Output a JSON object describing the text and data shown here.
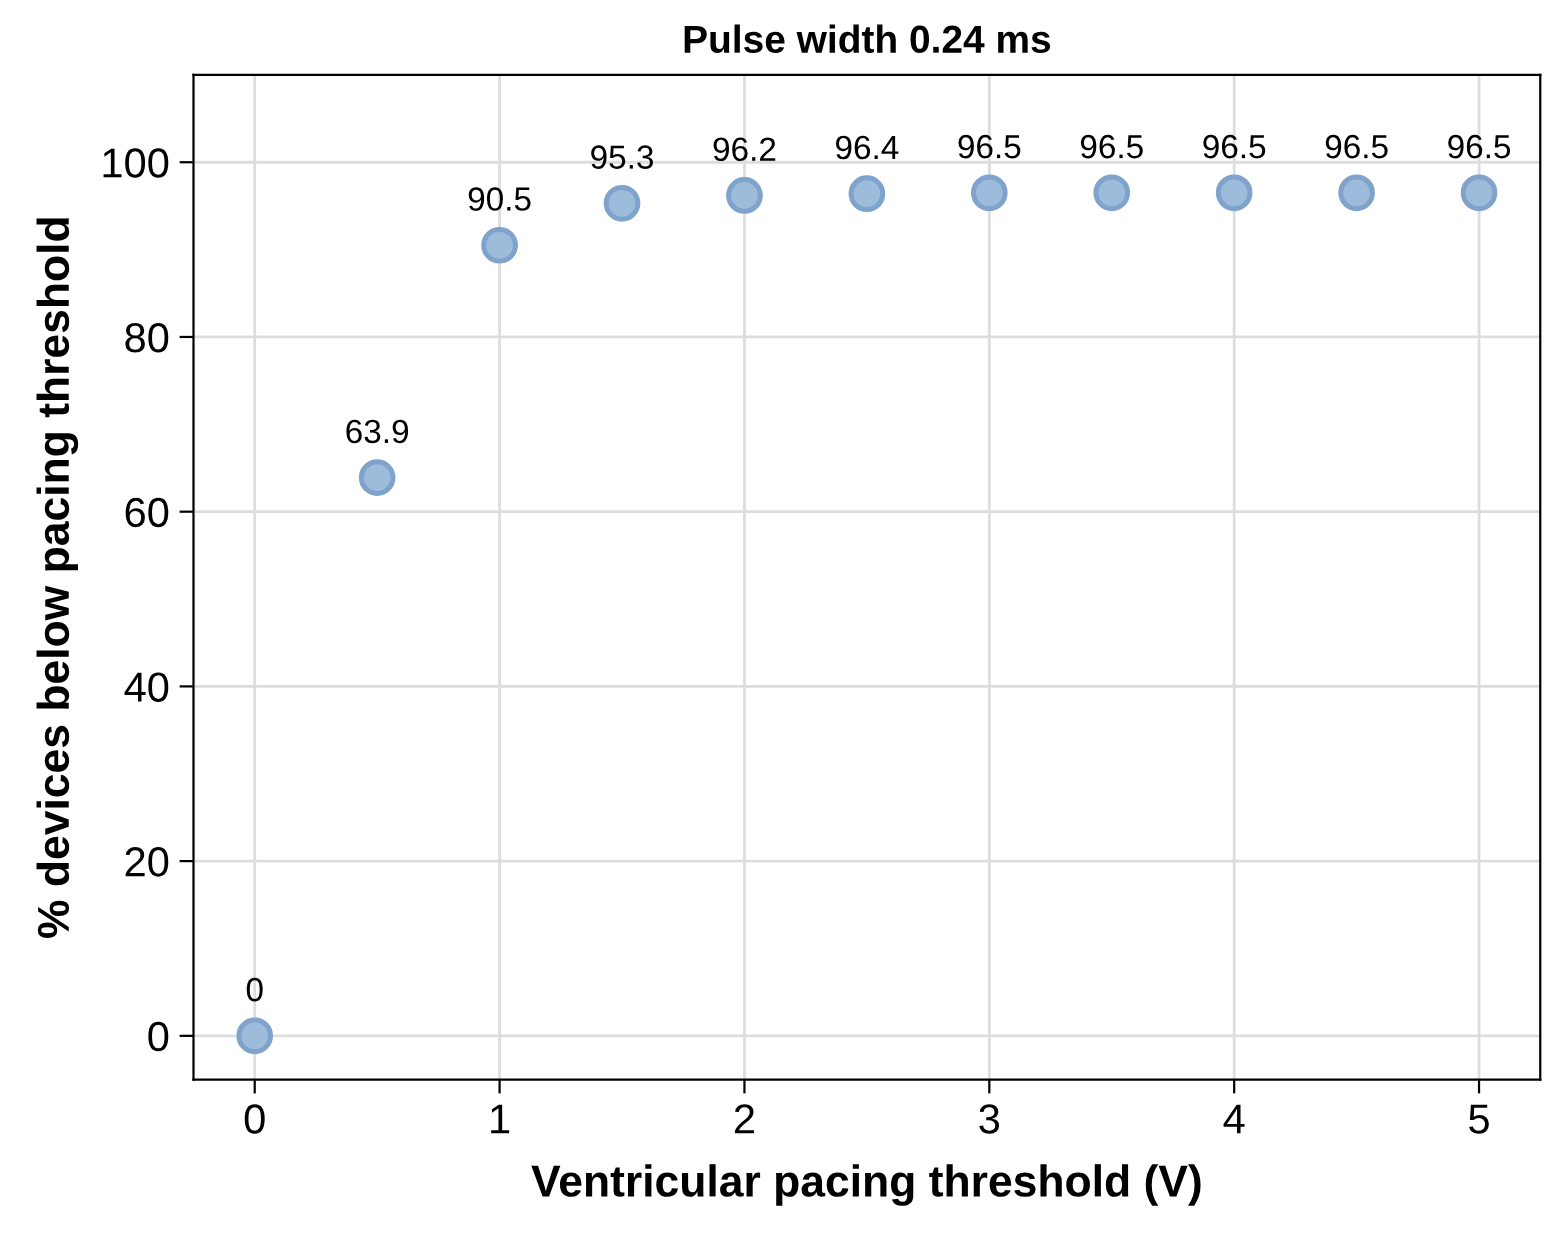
{
  "chart_data": {
    "type": "scatter",
    "title": "Pulse width 0.24 ms",
    "xlabel": "Ventricular pacing threshold (V)",
    "ylabel": "% devices below pacing threshold",
    "x": [
      0,
      0.5,
      1,
      1.5,
      2,
      2.5,
      3,
      3.5,
      4,
      4.5,
      5
    ],
    "series": [
      {
        "color": "#9dbcdc",
        "values": [
          0,
          63.9,
          90.5,
          95.3,
          96.2,
          96.4,
          96.5,
          96.5,
          96.5,
          96.5,
          96.5
        ]
      }
    ],
    "data_labels": true,
    "marker": "circle",
    "grid": true,
    "legend": false,
    "xlim": [
      -0.25,
      5.25
    ],
    "xticks": [
      0,
      1,
      2,
      3,
      4,
      5
    ],
    "ylim": [
      -5,
      110
    ],
    "yticks": [
      0,
      20,
      40,
      60,
      80,
      100
    ]
  }
}
